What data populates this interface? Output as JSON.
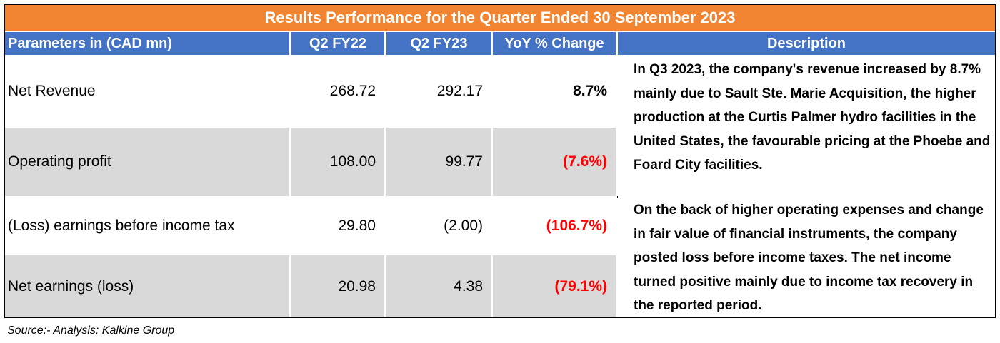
{
  "title": "Results Performance for the Quarter Ended 30 September 2023",
  "headers": {
    "parameters": "Parameters in (CAD mn)",
    "q2fy22": "Q2 FY22",
    "q2fy23": "Q2 FY23",
    "yoy": "YoY % Change",
    "description": "Description"
  },
  "rows": [
    {
      "label": "Net Revenue",
      "q2fy22": "268.72",
      "q2fy23": "292.17",
      "yoy": "8.7%"
    },
    {
      "label": "Operating profit",
      "q2fy22": "108.00",
      "q2fy23": "99.77",
      "yoy": "(7.6%)"
    },
    {
      "label": "(Loss) earnings before income tax",
      "q2fy22": "29.80",
      "q2fy23": "(2.00)",
      "yoy": "(106.7%)"
    },
    {
      "label": "Net earnings (loss)",
      "q2fy22": "20.98",
      "q2fy23": "4.38",
      "yoy": "(79.1%)"
    }
  ],
  "descriptions": [
    "In Q3 2023, the company's revenue increased by 8.7% mainly due to Sault Ste. Marie Acquisition, the higher production at the Curtis Palmer hydro facilities in the United States, the favourable pricing at the Phoebe and Foard City facilities.",
    "On the back of higher operating expenses and change in fair value of financial instruments, the company posted loss before income taxes. The net income turned positive mainly due to income tax recovery in the reported period."
  ],
  "source": "Source:- Analysis: Kalkine Group",
  "colors": {
    "title_bg": "#f08431",
    "header_bg": "#4472c4",
    "shade": "#d9d9d9",
    "negative": "#ff0000"
  }
}
